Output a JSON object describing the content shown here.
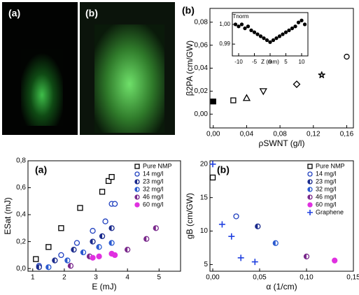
{
  "photos": [
    "(a)",
    "(b)"
  ],
  "chart_data": [
    {
      "type": "scatter",
      "panel": "(b)",
      "ylabel": "β2PA (cm/GW)",
      "xlabel": "ρSWNT (g/l)",
      "xlim": [
        -0.004,
        0.168
      ],
      "ylim": [
        -0.012,
        0.092
      ],
      "xticks": [
        {
          "value": 0,
          "label": "0,00"
        },
        {
          "value": 0.04,
          "label": "0,04"
        },
        {
          "value": 0.08,
          "label": "0,08"
        },
        {
          "value": 0.12,
          "label": "0,12"
        },
        {
          "value": 0.16,
          "label": "0,16"
        }
      ],
      "yticks": [
        {
          "value": 0,
          "label": "0,00"
        },
        {
          "value": 0.02,
          "label": "0,02"
        },
        {
          "value": 0.04,
          "label": "0,04"
        },
        {
          "value": 0.06,
          "label": "0,06"
        },
        {
          "value": 0.08,
          "label": "0,08"
        }
      ],
      "series": [
        {
          "color": "#000000",
          "markers": [
            "filled-square",
            "open-square",
            "open-triangle",
            "open-triangle-down",
            "open-diamond",
            "open-star",
            "open-circle"
          ],
          "x": [
            0,
            0.024,
            0.04,
            0.06,
            0.1,
            0.13,
            0.16
          ],
          "values": [
            0.011,
            0.012,
            0.014,
            0.02,
            0.026,
            0.034,
            0.05
          ]
        }
      ]
    },
    {
      "type": "scatter",
      "ylabel": "Tnorm",
      "xlabel": "Z (mm)",
      "xlim": [
        -12,
        12
      ],
      "ylim": [
        0.984,
        1.006
      ],
      "xticks": [
        -10,
        -5,
        0,
        5,
        10
      ],
      "yticks": [
        {
          "value": 0.99,
          "label": "0,99"
        },
        {
          "value": 1.0,
          "label": "1,00"
        }
      ],
      "series": [
        {
          "color": "#000000",
          "marker": "filled-circle",
          "x": [
            -11,
            -10,
            -9,
            -8,
            -7,
            -6,
            -5,
            -4,
            -3,
            -2,
            -1,
            0,
            1,
            2,
            3,
            4,
            5,
            6,
            7,
            8,
            9,
            10,
            11
          ],
          "values": [
            1.0,
            0.999,
            1.0,
            0.998,
            0.999,
            0.997,
            0.996,
            0.995,
            0.994,
            0.993,
            0.992,
            0.991,
            0.992,
            0.993,
            0.994,
            0.995,
            0.996,
            0.997,
            0.998,
            0.999,
            1.001,
            1.002,
            1.0
          ]
        }
      ]
    },
    {
      "type": "scatter",
      "panel": "(a)",
      "ylabel": "ESat (mJ)",
      "xlabel": "E (mJ)",
      "legend": "upper right",
      "xlim": [
        0.85,
        5.68
      ],
      "ylim": [
        -0.02,
        0.8
      ],
      "xticks": [
        1,
        2,
        3,
        4,
        5
      ],
      "yticks": [
        {
          "value": 0,
          "label": "0,0"
        },
        {
          "value": 0.2,
          "label": "0,2"
        },
        {
          "value": 0.4,
          "label": "0,4"
        },
        {
          "value": 0.6,
          "label": "0,6"
        },
        {
          "value": 0.8,
          "label": "0,8"
        }
      ],
      "series": [
        {
          "name": "Pure NMP",
          "color": "#000000",
          "marker": "open-square",
          "x": [
            1.1,
            1.5,
            1.9,
            2.5,
            3.2,
            3.4,
            3.5
          ],
          "values": [
            0.07,
            0.16,
            0.3,
            0.45,
            0.57,
            0.65,
            0.68
          ]
        },
        {
          "name": "14 mg/l",
          "color": "#1f3fbf",
          "marker": "open-circle",
          "x": [
            1.2,
            1.9,
            2.4,
            2.9,
            3.3,
            3.5,
            3.6
          ],
          "values": [
            0.02,
            0.1,
            0.19,
            0.28,
            0.35,
            0.48,
            0.48
          ]
        },
        {
          "name": "23 mg/l",
          "color": "#1a2a8c",
          "marker": "half-circle",
          "x": [
            1.2,
            1.7,
            2.3,
            2.9,
            3.2,
            3.5
          ],
          "values": [
            0.01,
            0.06,
            0.14,
            0.2,
            0.24,
            0.3
          ]
        },
        {
          "name": "32 mg/l",
          "color": "#2a5ad0",
          "marker": "half-circle",
          "x": [
            1.5,
            2.1,
            2.6,
            3.1,
            3.5
          ],
          "values": [
            0.01,
            0.06,
            0.12,
            0.16,
            0.19
          ]
        },
        {
          "name": "46 mg/l",
          "color": "#7a2a8c",
          "marker": "half-circle",
          "x": [
            2.2,
            2.8,
            4.0,
            4.6,
            4.9
          ],
          "values": [
            0.02,
            0.09,
            0.14,
            0.22,
            0.3
          ]
        },
        {
          "name": "60 mg/l",
          "color": "#e030e0",
          "marker": "filled-circle",
          "x": [
            2.9,
            3.1,
            3.5,
            3.6
          ],
          "values": [
            0.08,
            0.09,
            0.11,
            0.1
          ]
        }
      ]
    },
    {
      "type": "scatter",
      "panel": "(b)",
      "ylabel": "gB (cm/GW)",
      "xlabel": "α (1/cm)",
      "legend": "upper right",
      "xlim": [
        -0.003,
        0.15
      ],
      "ylim": [
        4,
        20.5
      ],
      "xticks": [
        {
          "value": 0,
          "label": "0,00"
        },
        {
          "value": 0.05,
          "label": "0,05"
        },
        {
          "value": 0.1,
          "label": "0,10"
        },
        {
          "value": 0.15,
          "label": "0,15"
        }
      ],
      "yticks": [
        5,
        10,
        15,
        20
      ],
      "series": [
        {
          "name": "Pure NMP",
          "color": "#000000",
          "marker": "open-square",
          "x": [
            0
          ],
          "values": [
            18
          ]
        },
        {
          "name": "14 mg/l",
          "color": "#1f3fbf",
          "marker": "open-circle",
          "x": [
            0.025
          ],
          "values": [
            12.2
          ]
        },
        {
          "name": "23 mg/l",
          "color": "#1a2a8c",
          "marker": "half-circle",
          "x": [
            0.048
          ],
          "values": [
            10.7
          ]
        },
        {
          "name": "32 mg/l",
          "color": "#2a5ad0",
          "marker": "half-circle",
          "x": [
            0.067
          ],
          "values": [
            8.2
          ]
        },
        {
          "name": "46 mg/l",
          "color": "#7a2a8c",
          "marker": "half-circle",
          "x": [
            0.1
          ],
          "values": [
            6.2
          ]
        },
        {
          "name": "60 mg/l",
          "color": "#e030e0",
          "marker": "filled-circle",
          "x": [
            0.13
          ],
          "values": [
            5.6
          ]
        },
        {
          "name": "Graphene",
          "color": "#2040e0",
          "marker": "plus",
          "x": [
            0,
            0.01,
            0.02,
            0.03,
            0.045
          ],
          "values": [
            20,
            11,
            9.2,
            6,
            5.4
          ]
        }
      ]
    }
  ]
}
